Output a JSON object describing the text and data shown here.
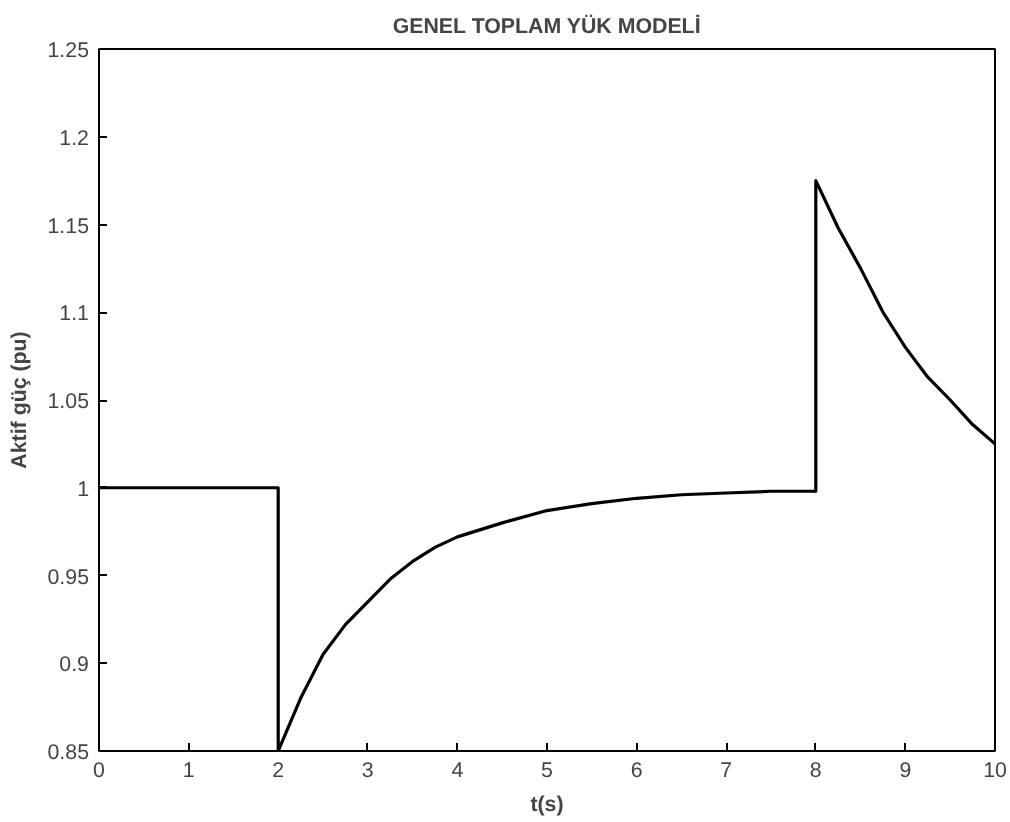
{
  "chart_data": {
    "type": "line",
    "title": "GENEL TOPLAM YÜK MODELİ",
    "xlabel": "t(s)",
    "ylabel": "Aktif güç (pu)",
    "xlim": [
      0,
      10
    ],
    "ylim": [
      0.85,
      1.25
    ],
    "xticks": [
      0,
      1,
      2,
      3,
      4,
      5,
      6,
      7,
      8,
      9,
      10
    ],
    "yticks": [
      0.85,
      0.9,
      0.95,
      1,
      1.05,
      1.1,
      1.15,
      1.2,
      1.25
    ],
    "grid": false,
    "series": [
      {
        "color": "#000000",
        "x": [
          0,
          2,
          2,
          2.25,
          2.5,
          2.75,
          3,
          3.25,
          3.5,
          3.75,
          4,
          4.5,
          5,
          5.5,
          6,
          6.5,
          7,
          7.5,
          8,
          8,
          8.25,
          8.5,
          8.75,
          9,
          9.25,
          9.5,
          9.75,
          10
        ],
        "values": [
          1,
          1,
          0.85,
          0.88,
          0.905,
          0.922,
          0.935,
          0.948,
          0.958,
          0.966,
          0.972,
          0.98,
          0.987,
          0.991,
          0.994,
          0.996,
          0.997,
          0.998,
          0.998,
          1.175,
          1.148,
          1.125,
          1.1,
          1.08,
          1.063,
          1.05,
          1.036,
          1.025
        ]
      }
    ]
  }
}
